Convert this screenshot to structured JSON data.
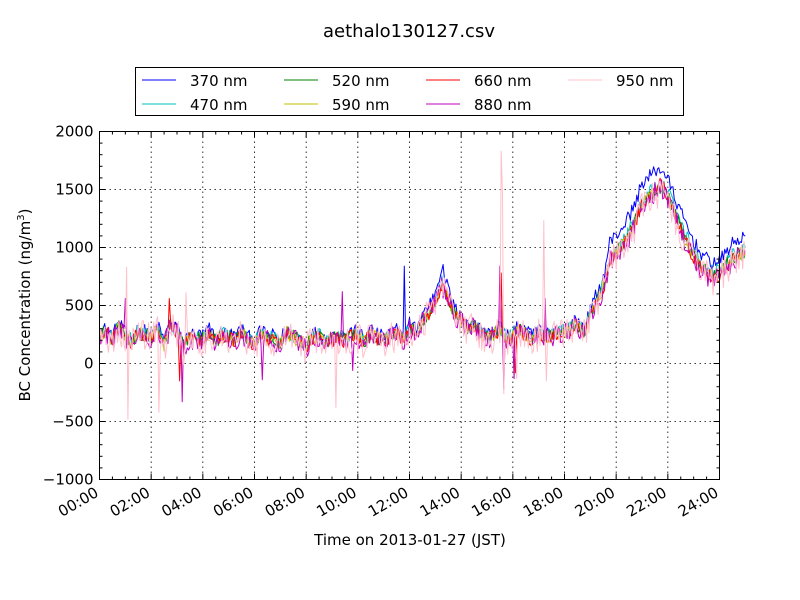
{
  "chart_data": {
    "type": "line",
    "title": "aethalo130127.csv",
    "xlabel": "Time on 2013-01-27 (JST)",
    "ylabel": "BC Concentration (ng/m",
    "ylabel_superscript": "3",
    "ylabel_suffix": ")",
    "xlim": [
      0,
      24
    ],
    "ylim": [
      -1000,
      2000
    ],
    "x_ticks": [
      0,
      2,
      4,
      6,
      8,
      10,
      12,
      14,
      16,
      18,
      20,
      22,
      24
    ],
    "x_tick_labels": [
      "00:00",
      "02:00",
      "04:00",
      "06:00",
      "08:00",
      "10:00",
      "12:00",
      "14:00",
      "16:00",
      "18:00",
      "20:00",
      "22:00",
      "24:00"
    ],
    "y_ticks": [
      -1000,
      -500,
      0,
      500,
      1000,
      1500,
      2000
    ],
    "y_tick_labels": [
      "−1000",
      "−500",
      "0",
      "500",
      "1000",
      "1500",
      "2000"
    ],
    "grid": true,
    "legend_position": "top",
    "x_unit": "hours",
    "x_step": 0.25,
    "series": [
      {
        "name": "370 nm",
        "color": "#0000ff",
        "noise": 60,
        "values": [
          280,
          300,
          240,
          350,
          260,
          220,
          300,
          280,
          250,
          330,
          200,
          360,
          300,
          180,
          260,
          240,
          250,
          300,
          220,
          280,
          260,
          240,
          300,
          230,
          210,
          280,
          250,
          240,
          210,
          300,
          260,
          230,
          180,
          250,
          280,
          200,
          240,
          260,
          230,
          280,
          270,
          220,
          300,
          250,
          230,
          260,
          290,
          240,
          350,
          300,
          430,
          500,
          620,
          840,
          640,
          470,
          420,
          330,
          370,
          300,
          250,
          280,
          350,
          230,
          270,
          320,
          280,
          240,
          300,
          260,
          270,
          300,
          300,
          330,
          380,
          300,
          450,
          610,
          720,
          1050,
          1100,
          1180,
          1270,
          1380,
          1560,
          1600,
          1660,
          1680,
          1590,
          1440,
          1300,
          1180,
          1050,
          960,
          900,
          870,
          880,
          960,
          1030,
          1070,
          1100
        ]
      },
      {
        "name": "470 nm",
        "color": "#00bfbf",
        "noise": 60,
        "values": [
          260,
          280,
          220,
          330,
          240,
          200,
          280,
          260,
          230,
          310,
          180,
          340,
          280,
          160,
          240,
          220,
          230,
          280,
          200,
          260,
          240,
          220,
          280,
          210,
          190,
          260,
          230,
          220,
          190,
          280,
          240,
          210,
          160,
          230,
          260,
          180,
          220,
          240,
          210,
          260,
          250,
          200,
          280,
          230,
          210,
          240,
          270,
          220,
          320,
          280,
          380,
          450,
          560,
          700,
          580,
          440,
          390,
          310,
          340,
          280,
          230,
          260,
          320,
          210,
          250,
          300,
          260,
          220,
          280,
          240,
          250,
          280,
          280,
          310,
          350,
          280,
          410,
          570,
          670,
          920,
          980,
          1060,
          1150,
          1260,
          1430,
          1470,
          1530,
          1550,
          1480,
          1340,
          1200,
          1080,
          960,
          880,
          820,
          800,
          810,
          880,
          940,
          980,
          1000
        ]
      },
      {
        "name": "520 nm",
        "color": "#008000",
        "noise": 60,
        "values": [
          250,
          270,
          210,
          320,
          230,
          190,
          270,
          250,
          220,
          300,
          170,
          330,
          270,
          150,
          230,
          210,
          220,
          270,
          190,
          250,
          230,
          210,
          270,
          200,
          180,
          250,
          220,
          210,
          180,
          270,
          230,
          200,
          150,
          220,
          250,
          170,
          210,
          230,
          200,
          250,
          240,
          190,
          270,
          220,
          200,
          230,
          260,
          210,
          310,
          270,
          370,
          440,
          540,
          680,
          560,
          430,
          380,
          300,
          330,
          270,
          220,
          250,
          310,
          200,
          240,
          290,
          250,
          210,
          270,
          230,
          240,
          270,
          270,
          300,
          340,
          270,
          400,
          550,
          650,
          900,
          950,
          1030,
          1120,
          1230,
          1400,
          1440,
          1500,
          1520,
          1450,
          1310,
          1170,
          1050,
          930,
          850,
          790,
          770,
          780,
          850,
          910,
          950,
          970
        ]
      },
      {
        "name": "590 nm",
        "color": "#bfbf00",
        "noise": 60,
        "values": [
          245,
          265,
          205,
          315,
          225,
          185,
          265,
          245,
          215,
          295,
          165,
          325,
          265,
          145,
          225,
          205,
          215,
          265,
          185,
          245,
          225,
          205,
          265,
          195,
          175,
          245,
          215,
          205,
          175,
          265,
          225,
          195,
          145,
          215,
          245,
          165,
          205,
          225,
          195,
          245,
          235,
          185,
          265,
          215,
          195,
          225,
          255,
          205,
          305,
          265,
          365,
          435,
          535,
          670,
          555,
          425,
          375,
          295,
          325,
          265,
          215,
          245,
          305,
          195,
          235,
          285,
          245,
          205,
          265,
          225,
          235,
          265,
          265,
          295,
          335,
          265,
          395,
          540,
          640,
          890,
          940,
          1020,
          1110,
          1220,
          1390,
          1430,
          1490,
          1510,
          1440,
          1300,
          1160,
          1040,
          920,
          840,
          780,
          760,
          770,
          840,
          900,
          940,
          960
        ]
      },
      {
        "name": "660 nm",
        "color": "#ff0000",
        "noise": 60,
        "values": [
          240,
          260,
          200,
          310,
          220,
          180,
          260,
          240,
          210,
          290,
          160,
          320,
          260,
          140,
          220,
          200,
          210,
          260,
          180,
          240,
          220,
          200,
          260,
          190,
          170,
          240,
          210,
          200,
          170,
          260,
          220,
          190,
          140,
          210,
          240,
          160,
          200,
          220,
          190,
          240,
          230,
          180,
          260,
          210,
          190,
          220,
          250,
          200,
          300,
          260,
          360,
          430,
          530,
          660,
          550,
          420,
          370,
          290,
          320,
          260,
          210,
          240,
          300,
          190,
          230,
          280,
          240,
          200,
          260,
          220,
          230,
          260,
          260,
          290,
          330,
          260,
          390,
          530,
          630,
          880,
          930,
          1010,
          1100,
          1210,
          1380,
          1420,
          1480,
          1560,
          1430,
          1290,
          1150,
          1030,
          910,
          830,
          770,
          750,
          760,
          830,
          890,
          930,
          950
        ]
      },
      {
        "name": "880 nm",
        "color": "#bf00bf",
        "noise": 90,
        "values": [
          235,
          255,
          195,
          305,
          215,
          175,
          255,
          235,
          205,
          285,
          155,
          315,
          255,
          135,
          215,
          195,
          205,
          255,
          175,
          235,
          215,
          195,
          255,
          185,
          165,
          235,
          205,
          195,
          165,
          255,
          215,
          185,
          135,
          205,
          235,
          155,
          195,
          215,
          185,
          235,
          225,
          175,
          255,
          205,
          185,
          215,
          245,
          195,
          295,
          255,
          355,
          425,
          525,
          650,
          545,
          415,
          365,
          285,
          315,
          255,
          205,
          235,
          295,
          185,
          225,
          275,
          235,
          195,
          255,
          215,
          225,
          255,
          255,
          285,
          325,
          255,
          385,
          525,
          625,
          870,
          920,
          1000,
          1090,
          1200,
          1370,
          1410,
          1470,
          1500,
          1420,
          1280,
          1140,
          1020,
          900,
          820,
          760,
          740,
          750,
          820,
          880,
          920,
          940
        ]
      },
      {
        "name": "950 nm",
        "color": "#ffc0cb",
        "noise": 140,
        "values": [
          230,
          250,
          190,
          300,
          210,
          170,
          250,
          230,
          200,
          280,
          150,
          310,
          250,
          130,
          210,
          190,
          200,
          250,
          170,
          230,
          210,
          190,
          250,
          180,
          160,
          230,
          200,
          190,
          160,
          250,
          210,
          180,
          130,
          200,
          230,
          150,
          190,
          210,
          180,
          230,
          220,
          170,
          250,
          200,
          180,
          210,
          240,
          190,
          290,
          250,
          350,
          420,
          520,
          640,
          540,
          410,
          360,
          280,
          310,
          250,
          200,
          230,
          290,
          180,
          220,
          270,
          230,
          190,
          250,
          210,
          220,
          250,
          250,
          280,
          320,
          250,
          380,
          520,
          620,
          860,
          910,
          990,
          1080,
          1190,
          1360,
          1400,
          1460,
          1490,
          1410,
          1270,
          1130,
          1010,
          890,
          810,
          750,
          730,
          740,
          810,
          870,
          910,
          930
        ]
      }
    ]
  }
}
